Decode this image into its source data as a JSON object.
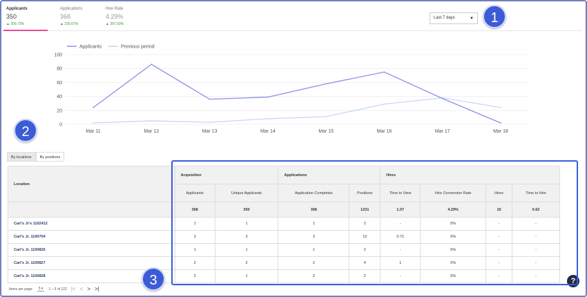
{
  "kpis": [
    {
      "title": "Applicants",
      "value": "350",
      "delta": "▲ 209.73%"
    },
    {
      "title": "Applications",
      "value": "368",
      "delta": "▲ 226.67%"
    },
    {
      "title": "Hire Rate",
      "value": "4.29%",
      "delta": "▲ 397.50%"
    }
  ],
  "range": {
    "label": "Last 7 days"
  },
  "badges": [
    "1",
    "2",
    "3"
  ],
  "chart_data": {
    "type": "line",
    "categories": [
      "Mar 11",
      "Mar 12",
      "Mar 13",
      "Mar 14",
      "Mar 15",
      "Mar 16",
      "Mar 17",
      "Mar 18"
    ],
    "series": [
      {
        "name": "Applicants",
        "color": "#8a8fe8",
        "values": [
          24,
          86,
          36,
          39,
          58,
          75,
          37,
          2
        ]
      },
      {
        "name": "Previous period",
        "color": "#c6d6f5",
        "values": [
          2,
          5,
          3,
          8,
          11,
          29,
          38,
          24
        ]
      }
    ],
    "yticks": [
      "100",
      "80",
      "60",
      "40",
      "20",
      "0"
    ],
    "ylim": [
      0,
      100
    ],
    "grid": true,
    "legend": "top-left"
  },
  "subtabs": [
    "By locations",
    "By positions"
  ],
  "table": {
    "location_header": "Location",
    "groups": [
      "Acquisition",
      "Applications",
      "Hires"
    ],
    "columns": [
      "Applicants",
      "Unique Applicants",
      "Application Completes",
      "Positions",
      "Time to View",
      "Hire Conversion Rate",
      "Hires",
      "Time to Hire"
    ],
    "totals": [
      "368",
      "350",
      "368",
      "1231",
      "1.07",
      "4.29%",
      "15",
      "0.62"
    ],
    "rows": [
      {
        "loc": "Carl's Jr's 1102412",
        "cells": [
          "1",
          "1",
          "1",
          "2",
          "-",
          "0%",
          "-",
          "-"
        ]
      },
      {
        "loc": "Carl's Jr. 1100704",
        "cells": [
          "3",
          "3",
          "3",
          "12",
          "0.71",
          "0%",
          "-",
          "-"
        ]
      },
      {
        "loc": "Carl's Jr. 1100826",
        "cells": [
          "1",
          "1",
          "1",
          "2",
          "-",
          "0%",
          "-",
          "-"
        ]
      },
      {
        "loc": "Carl's Jr. 1100827",
        "cells": [
          "2",
          "2",
          "2",
          "4",
          "1",
          "0%",
          "-",
          "-"
        ]
      },
      {
        "loc": "Carl's Jr. 1100828",
        "cells": [
          "2",
          "1",
          "2",
          "2",
          "-",
          "0%",
          "-",
          "-"
        ]
      }
    ]
  },
  "pager": {
    "label": "Items per page:",
    "size": "5",
    "range": "1 – 5 of 122",
    "first": "|<",
    "prev": "<",
    "next": ">",
    "last": ">|"
  },
  "help": "?"
}
